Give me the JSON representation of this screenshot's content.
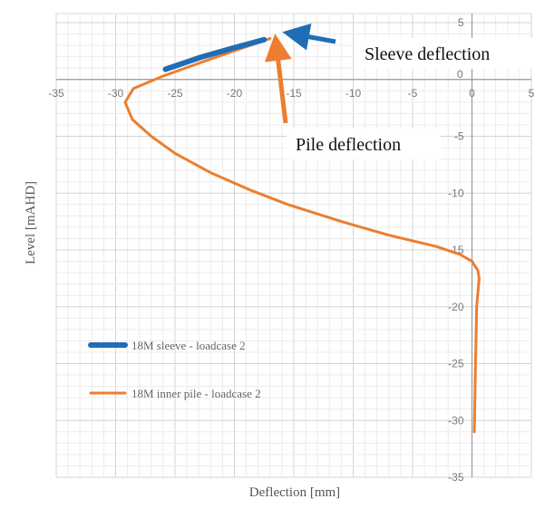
{
  "chart_data": {
    "type": "line",
    "title": "",
    "xlabel": "Deflection [mm]",
    "ylabel": "Level [mAHD]",
    "xlim": [
      -35,
      5
    ],
    "ylim": [
      -35,
      5
    ],
    "x_ticks": [
      "-35",
      "-30",
      "-25",
      "-20",
      "-15",
      "-10",
      "-5",
      "0",
      "5"
    ],
    "y_ticks": [
      "5",
      "0",
      "-5",
      "-10",
      "-15",
      "-20",
      "-25",
      "-30",
      "-35"
    ],
    "grid": true,
    "legend_position": "lower-left",
    "series": [
      {
        "name": "18M sleeve - loadcase 2",
        "color": "#1f6db5",
        "points": [
          [
            -25.8,
            0.9
          ],
          [
            -23.0,
            1.9
          ],
          [
            -20.0,
            2.8
          ],
          [
            -17.5,
            3.5
          ]
        ]
      },
      {
        "name": "18M inner pile - loadcase 2",
        "color": "#ed7d31",
        "points": [
          [
            -17.0,
            3.6
          ],
          [
            -22.0,
            1.8
          ],
          [
            -26.0,
            0.3
          ],
          [
            -28.5,
            -0.8
          ],
          [
            -29.2,
            -2.0
          ],
          [
            -28.6,
            -3.5
          ],
          [
            -27.0,
            -5.0
          ],
          [
            -25.0,
            -6.5
          ],
          [
            -22.0,
            -8.2
          ],
          [
            -18.5,
            -9.8
          ],
          [
            -15.5,
            -11.0
          ],
          [
            -11.0,
            -12.5
          ],
          [
            -7.0,
            -13.7
          ],
          [
            -3.0,
            -14.7
          ],
          [
            -1.0,
            -15.4
          ],
          [
            0.0,
            -16.0
          ],
          [
            0.5,
            -16.8
          ],
          [
            0.6,
            -17.5
          ],
          [
            0.4,
            -20.0
          ],
          [
            0.3,
            -25.0
          ],
          [
            0.2,
            -31.0
          ]
        ]
      }
    ],
    "annotations": [
      {
        "text": "Sleeve deflection",
        "arrow_to": [
          -16.0,
          4.0
        ],
        "color": "#1f6db5"
      },
      {
        "text": "Pile deflection",
        "arrow_to": [
          -16.8,
          3.5
        ],
        "color": "#ed7d31"
      }
    ]
  }
}
